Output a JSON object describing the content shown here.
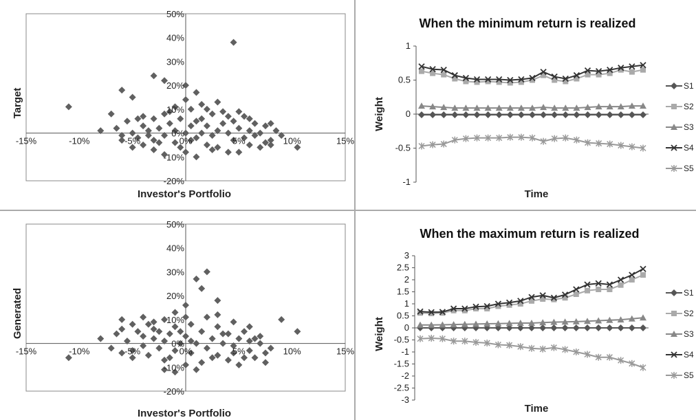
{
  "colors": {
    "s1": "#555555",
    "s2": "#aaaaaa",
    "s3": "#888888",
    "s4": "#333333",
    "s5": "#999999",
    "scatter": "#606060",
    "border": "#888888",
    "divider": "#aaaaaa"
  },
  "chart_data": [
    {
      "id": "target-scatter",
      "type": "scatter",
      "xlabel": "Investor's Portfolio",
      "ylabel": "Target",
      "xticks": [
        "-15%",
        "-10%",
        "-5%",
        "0%",
        "5%",
        "10%",
        "15%"
      ],
      "yticks": [
        "-20%",
        "-10%",
        "0%",
        "10%",
        "20%",
        "30%",
        "40%",
        "50%"
      ],
      "xlim": [
        -15,
        15
      ],
      "ylim": [
        -20,
        50
      ],
      "points": [
        [
          -11,
          11
        ],
        [
          -6,
          18
        ],
        [
          -5,
          15
        ],
        [
          -3,
          24
        ],
        [
          -2,
          22
        ],
        [
          0,
          20
        ],
        [
          1,
          17
        ],
        [
          4.5,
          38
        ],
        [
          10.5,
          -6
        ],
        [
          -8,
          1
        ],
        [
          -7,
          8
        ],
        [
          -6.5,
          2
        ],
        [
          -6,
          -3
        ],
        [
          -5.5,
          5
        ],
        [
          -5,
          0
        ],
        [
          -4.5,
          -2
        ],
        [
          -4,
          3
        ],
        [
          -4,
          -5
        ],
        [
          -3.5,
          1
        ],
        [
          -3,
          6
        ],
        [
          -3,
          -3
        ],
        [
          -2.5,
          2
        ],
        [
          -2,
          -1
        ],
        [
          -2,
          8
        ],
        [
          -1.5,
          4
        ],
        [
          -1,
          -4
        ],
        [
          -1,
          1
        ],
        [
          -0.5,
          6
        ],
        [
          0,
          0
        ],
        [
          0,
          -8
        ],
        [
          0.5,
          3
        ],
        [
          0.5,
          10
        ],
        [
          1,
          -2
        ],
        [
          1,
          5
        ],
        [
          1.5,
          0
        ],
        [
          1.5,
          12
        ],
        [
          2,
          -5
        ],
        [
          2,
          3
        ],
        [
          2.5,
          8
        ],
        [
          2.5,
          -1
        ],
        [
          3,
          1
        ],
        [
          3,
          -6
        ],
        [
          3.5,
          4
        ],
        [
          4,
          0
        ],
        [
          4,
          7
        ],
        [
          4.5,
          -3
        ],
        [
          5,
          2
        ],
        [
          5,
          9
        ],
        [
          5.5,
          -2
        ],
        [
          6,
          1
        ],
        [
          6,
          -5
        ],
        [
          6.5,
          4
        ],
        [
          7,
          0
        ],
        [
          7.5,
          3
        ],
        [
          8,
          -3
        ],
        [
          8.5,
          1
        ],
        [
          9,
          -1
        ],
        [
          -5,
          -6
        ],
        [
          -4,
          7
        ],
        [
          -3,
          -7
        ],
        [
          -2,
          -9
        ],
        [
          -1,
          11
        ],
        [
          0,
          14
        ],
        [
          1,
          -10
        ],
        [
          2,
          10
        ],
        [
          3,
          13
        ],
        [
          4,
          -8
        ],
        [
          5,
          -8
        ],
        [
          6,
          6
        ],
        [
          7,
          -6
        ],
        [
          8,
          4
        ],
        [
          -6,
          -1
        ],
        [
          -4.5,
          6
        ],
        [
          -3.5,
          -1
        ],
        [
          -2.5,
          -4
        ],
        [
          -1.5,
          9
        ],
        [
          -0.5,
          -6
        ],
        [
          0.5,
          -3
        ],
        [
          1.5,
          6
        ],
        [
          2.5,
          -7
        ],
        [
          3.5,
          9
        ],
        [
          4.5,
          5
        ],
        [
          5.5,
          7
        ],
        [
          6.5,
          -1
        ],
        [
          7.5,
          -4
        ],
        [
          8,
          -5
        ]
      ]
    },
    {
      "id": "min-weights",
      "type": "line",
      "title": "When the minimum return is realized",
      "xlabel": "Time",
      "ylabel": "Weight",
      "ylim": [
        -1,
        1
      ],
      "yticks": [
        "-1",
        "-0.5",
        "0",
        "0.5",
        "1"
      ],
      "series": [
        {
          "name": "S1",
          "marker": "diamond",
          "color": "#555555",
          "values": [
            -0.01,
            -0.01,
            -0.01,
            -0.01,
            -0.01,
            -0.01,
            -0.01,
            -0.01,
            -0.01,
            -0.01,
            -0.01,
            -0.01,
            -0.01,
            -0.01,
            -0.01,
            -0.01,
            -0.01,
            -0.01,
            -0.01,
            -0.01,
            -0.01
          ]
        },
        {
          "name": "S2",
          "marker": "square",
          "color": "#aaaaaa",
          "values": [
            0.63,
            0.6,
            0.58,
            0.52,
            0.48,
            0.47,
            0.48,
            0.47,
            0.46,
            0.47,
            0.5,
            0.57,
            0.5,
            0.48,
            0.52,
            0.58,
            0.58,
            0.6,
            0.65,
            0.62,
            0.65
          ]
        },
        {
          "name": "S3",
          "marker": "triangle",
          "color": "#888888",
          "values": [
            0.12,
            0.11,
            0.1,
            0.09,
            0.09,
            0.09,
            0.09,
            0.09,
            0.09,
            0.09,
            0.09,
            0.1,
            0.09,
            0.09,
            0.09,
            0.1,
            0.11,
            0.11,
            0.11,
            0.12,
            0.12
          ]
        },
        {
          "name": "S4",
          "marker": "x",
          "color": "#333333",
          "values": [
            0.7,
            0.66,
            0.65,
            0.57,
            0.53,
            0.51,
            0.51,
            0.51,
            0.5,
            0.51,
            0.53,
            0.62,
            0.55,
            0.52,
            0.57,
            0.64,
            0.63,
            0.65,
            0.68,
            0.7,
            0.72
          ]
        },
        {
          "name": "S5",
          "marker": "star",
          "color": "#999999",
          "values": [
            -0.47,
            -0.45,
            -0.44,
            -0.38,
            -0.36,
            -0.35,
            -0.35,
            -0.35,
            -0.34,
            -0.34,
            -0.35,
            -0.4,
            -0.36,
            -0.35,
            -0.38,
            -0.42,
            -0.43,
            -0.44,
            -0.46,
            -0.48,
            -0.5
          ]
        }
      ]
    },
    {
      "id": "generated-scatter",
      "type": "scatter",
      "xlabel": "Investor's Portfolio",
      "ylabel": "Generated",
      "xticks": [
        "-15%",
        "-10%",
        "-5%",
        "0%",
        "5%",
        "10%",
        "15%"
      ],
      "yticks": [
        "-20%",
        "-10%",
        "0%",
        "10%",
        "20%",
        "30%",
        "40%",
        "50%"
      ],
      "xlim": [
        -15,
        15
      ],
      "ylim": [
        -20,
        50
      ],
      "points": [
        [
          -11,
          -6
        ],
        [
          -8,
          2
        ],
        [
          -6,
          10
        ],
        [
          -5,
          8
        ],
        [
          -4,
          11
        ],
        [
          -3,
          9
        ],
        [
          -2,
          10
        ],
        [
          -1,
          13
        ],
        [
          0,
          16
        ],
        [
          1,
          27
        ],
        [
          1.5,
          23
        ],
        [
          2,
          30
        ],
        [
          3,
          18
        ],
        [
          9,
          10
        ],
        [
          10.5,
          5
        ],
        [
          -7,
          -2
        ],
        [
          -6.5,
          4
        ],
        [
          -6,
          -4
        ],
        [
          -5.5,
          1
        ],
        [
          -5,
          -3
        ],
        [
          -4.5,
          5
        ],
        [
          -4,
          -1
        ],
        [
          -4,
          3
        ],
        [
          -3.5,
          -5
        ],
        [
          -3,
          2
        ],
        [
          -3,
          6
        ],
        [
          -2.5,
          -2
        ],
        [
          -2,
          1
        ],
        [
          -2,
          -7
        ],
        [
          -1.5,
          4
        ],
        [
          -1,
          -3
        ],
        [
          -1,
          7
        ],
        [
          -0.5,
          0
        ],
        [
          0,
          3
        ],
        [
          0,
          -9
        ],
        [
          0.5,
          -4
        ],
        [
          0.5,
          8
        ],
        [
          1,
          0
        ],
        [
          1,
          -11
        ],
        [
          1.5,
          5
        ],
        [
          2,
          -2
        ],
        [
          2,
          11
        ],
        [
          2.5,
          2
        ],
        [
          3,
          -5
        ],
        [
          3,
          7
        ],
        [
          3.5,
          0
        ],
        [
          4,
          4
        ],
        [
          4,
          -7
        ],
        [
          4.5,
          -1
        ],
        [
          5,
          2
        ],
        [
          5,
          -9
        ],
        [
          5.5,
          5
        ],
        [
          6,
          -3
        ],
        [
          6,
          1
        ],
        [
          6.5,
          -6
        ],
        [
          7,
          0
        ],
        [
          7.5,
          -4
        ],
        [
          8,
          -2
        ],
        [
          -2,
          -11
        ],
        [
          -1,
          -12
        ],
        [
          0,
          11
        ],
        [
          3,
          12
        ],
        [
          4.5,
          9
        ],
        [
          6,
          7
        ],
        [
          7,
          3
        ],
        [
          -6,
          6
        ],
        [
          -5,
          -6
        ],
        [
          -3.5,
          8
        ],
        [
          -2.5,
          5
        ],
        [
          -1.5,
          -6
        ],
        [
          -0.5,
          5
        ],
        [
          0.5,
          1
        ],
        [
          1.5,
          -8
        ],
        [
          2.5,
          -6
        ],
        [
          3.5,
          4
        ],
        [
          4.5,
          -4
        ],
        [
          5.5,
          -6
        ],
        [
          6.5,
          2
        ],
        [
          7.5,
          -8
        ]
      ]
    },
    {
      "id": "max-weights",
      "type": "line",
      "title": "When the maximum return is realized",
      "xlabel": "Time",
      "ylabel": "Weight",
      "ylim": [
        -3,
        3
      ],
      "yticks": [
        "-3",
        "-2.5",
        "-2",
        "-1.5",
        "-1",
        "-0.5",
        "0",
        "0.5",
        "1",
        "1.5",
        "2",
        "2.5",
        "3"
      ],
      "series": [
        {
          "name": "S1",
          "marker": "diamond",
          "color": "#555555",
          "values": [
            0.0,
            0.0,
            0.0,
            0.0,
            0.0,
            0.0,
            0.0,
            0.0,
            0.0,
            0.0,
            0.0,
            0.0,
            0.0,
            0.0,
            0.0,
            0.0,
            0.0,
            0.0,
            0.0,
            0.0,
            0.0
          ]
        },
        {
          "name": "S2",
          "marker": "square",
          "color": "#aaaaaa",
          "values": [
            0.62,
            0.6,
            0.62,
            0.72,
            0.72,
            0.8,
            0.8,
            0.9,
            0.95,
            1.0,
            1.12,
            1.2,
            1.18,
            1.25,
            1.4,
            1.55,
            1.6,
            1.6,
            1.78,
            2.0,
            2.2
          ]
        },
        {
          "name": "S3",
          "marker": "triangle",
          "color": "#888888",
          "values": [
            0.12,
            0.12,
            0.13,
            0.14,
            0.15,
            0.16,
            0.17,
            0.18,
            0.19,
            0.2,
            0.2,
            0.22,
            0.24,
            0.25,
            0.26,
            0.28,
            0.3,
            0.32,
            0.34,
            0.38,
            0.42
          ]
        },
        {
          "name": "S4",
          "marker": "x",
          "color": "#333333",
          "values": [
            0.68,
            0.65,
            0.66,
            0.8,
            0.8,
            0.88,
            0.9,
            1.0,
            1.05,
            1.12,
            1.28,
            1.35,
            1.25,
            1.38,
            1.6,
            1.8,
            1.85,
            1.8,
            2.0,
            2.2,
            2.45
          ]
        },
        {
          "name": "S5",
          "marker": "star",
          "color": "#999999",
          "values": [
            -0.45,
            -0.43,
            -0.45,
            -0.55,
            -0.55,
            -0.6,
            -0.63,
            -0.7,
            -0.72,
            -0.78,
            -0.85,
            -0.88,
            -0.82,
            -0.9,
            -1.0,
            -1.1,
            -1.22,
            -1.22,
            -1.35,
            -1.48,
            -1.65
          ]
        }
      ]
    }
  ]
}
